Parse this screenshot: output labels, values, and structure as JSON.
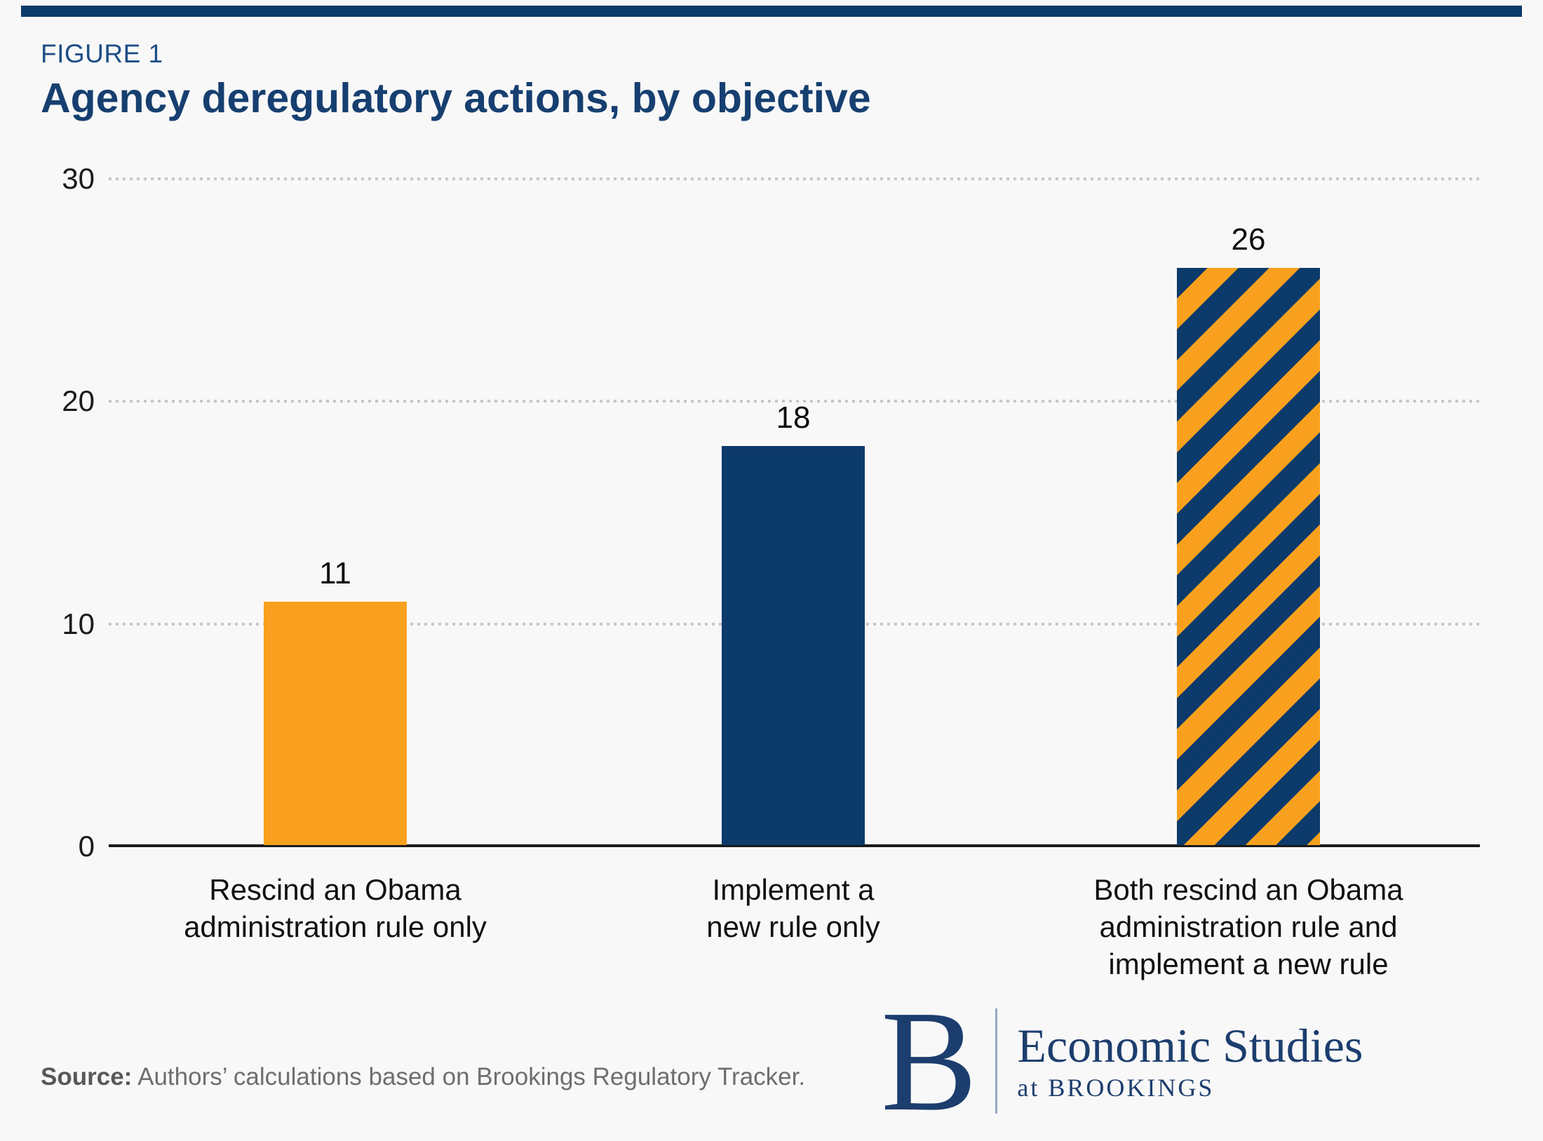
{
  "figure_label": "FIGURE 1",
  "title": "Agency deregulatory actions, by objective",
  "chart_data": {
    "type": "bar",
    "categories": [
      "Rescind an Obama\nadministration rule only",
      "Implement a\nnew rule only",
      "Both rescind an Obama\nadministration rule and\nimplement a new rule"
    ],
    "values": [
      11,
      18,
      26
    ],
    "value_labels": [
      "11",
      "18",
      "26"
    ],
    "bar_styles": [
      "solid-orange",
      "solid-navy",
      "striped-navy-orange"
    ],
    "title": "Agency deregulatory actions, by objective",
    "xlabel": "",
    "ylabel": "",
    "ylim": [
      0,
      30
    ],
    "yticks": [
      0,
      10,
      20,
      30
    ],
    "grid": "horizontal dotted",
    "legend": "none"
  },
  "colors": {
    "navy": "#0C3A6A",
    "orange": "#F9A11E",
    "title_blue": "#163F70",
    "figure_label_blue": "#1C4E86",
    "grid_gray": "#C7C7C7",
    "axis_black": "#1A1A1A",
    "logo_navy": "#1C3E6E"
  },
  "source": {
    "prefix": "Source:",
    "text": " Authors’ calculations based on Brookings Regulatory Tracker."
  },
  "logo": {
    "monogram": "B",
    "line1": "Economic Studies",
    "line2": "at BROOKINGS"
  }
}
